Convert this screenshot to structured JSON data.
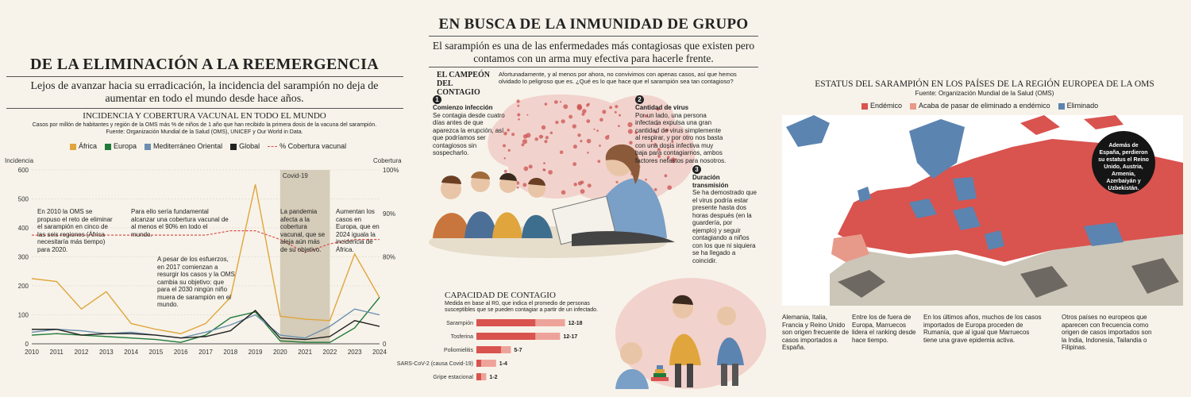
{
  "left": {
    "title": "DE LA ELIMINACIÓN A LA REEMERGENCIA",
    "subtitle": "Lejos de avanzar hacia su erradicación, la incidencia del sarampión no deja de aumentar en todo el mundo desde hace años.",
    "chart_title": "INCIDENCIA Y COBERTURA VACUNAL EN TODO EL MUNDO",
    "chart_desc": "Casos por millón de habitantes y región de la OMS más % de niños de 1 año que han recibido la primera dosis de la vacuna del sarampión.",
    "source": "Fuente: Organización Mundial de la Salud (OMS), UNICEF y Our World in Data.",
    "y_left_label": "Incidencia",
    "y_right_label": "Cobertura",
    "covid_label": "Covid-19",
    "annotations": [
      "En 2010 la OMS se propuso el reto de eliminar el sarampión en cinco de las seis regiones (África necesitaría más tiempo) para 2020.",
      "Para ello sería fundamental alcanzar una cobertura vacunal de al menos el 90% en todo el mundo.",
      "La pandemia afecta a la cobertura vacunal, que se aleja aún más de su objetivo.",
      "Aumentan los casos en Europa, que en 2024 iguala la incidencia de África.",
      "A pesar de los esfuerzos, en 2017 comienzan a resurgir los casos y la OMS cambia su objetivo: que para el 2030 ningún niño muera de sarampión en el mundo."
    ]
  },
  "chart_data": {
    "type": "line",
    "x": [
      "2010",
      "2011",
      "2012",
      "2013",
      "2014",
      "2015",
      "2016",
      "2017",
      "2018",
      "2019",
      "2020",
      "2021",
      "2022",
      "2023",
      "2024"
    ],
    "ylim": [
      0,
      600
    ],
    "yticks": [
      0,
      100,
      200,
      300,
      400,
      500,
      600
    ],
    "y2lim": [
      0,
      100
    ],
    "y2ticks": [
      "0",
      "80%",
      "90%",
      "100%"
    ],
    "series": [
      {
        "name": "África",
        "color": "#e0a53c",
        "values": [
          225,
          215,
          120,
          180,
          70,
          50,
          35,
          70,
          160,
          550,
          95,
          85,
          80,
          310,
          160
        ]
      },
      {
        "name": "Europa",
        "color": "#1f7a3a",
        "values": [
          30,
          35,
          30,
          25,
          20,
          15,
          5,
          30,
          90,
          110,
          10,
          5,
          5,
          55,
          160
        ]
      },
      {
        "name": "Mediterráneo Oriental",
        "color": "#6b8fb0",
        "values": [
          40,
          50,
          45,
          35,
          40,
          30,
          20,
          40,
          65,
          100,
          30,
          20,
          60,
          120,
          100
        ]
      },
      {
        "name": "Global",
        "color": "#222222",
        "values": [
          50,
          50,
          30,
          35,
          35,
          30,
          20,
          25,
          45,
          115,
          20,
          15,
          25,
          80,
          60
        ]
      },
      {
        "name": "% Cobertura vacunal",
        "color": "#d9534f",
        "dashed": true,
        "values": [
          85,
          85,
          85,
          85,
          85,
          85,
          85,
          85,
          86,
          86,
          84,
          81,
          83,
          84,
          84
        ]
      }
    ],
    "covid_band": [
      "2020",
      "2022"
    ]
  },
  "middle": {
    "title": "EN BUSCA DE LA INMUNIDAD DE GRUPO",
    "subtitle": "El sarampión es una de las enfermedades más contagiosas que existen pero contamos con un arma muy efectiva para hacerle frente.",
    "section_title": "EL CAMPEÓN DEL CONTAGIO",
    "section_text": "Afortunadamente, y al menos por ahora, no convivimos con apenas casos, así que hemos olvidado lo peligroso que es. ¿Qué es lo que hace que el sarampión sea tan contagioso?",
    "steps": [
      {
        "num": "1",
        "title": "Comienzo infección",
        "text": "Se contagia desde cuatro días antes de que aparezca la erupción, así que podríamos ser contagiosos sin sospecharlo."
      },
      {
        "num": "2",
        "title": "Cantidad de virus",
        "text": "Por un lado, una persona infectada expulsa una gran cantidad de virus simplemente al respirar, y por otro nos basta con una dosis infectiva muy baja para contagiarnos, ambos factores nefastos para nosotros."
      },
      {
        "num": "3",
        "title": "Duración transmisión",
        "text": "Se ha demostrado que el virus podría estar presente hasta dos horas después (en la guardería, por ejemplo) y seguir contagiando a niños con los que ni siquiera se ha llegado a coincidir."
      }
    ],
    "contagion": {
      "title": "CAPACIDAD DE CONTAGIO",
      "desc": "Medida en base al R0, que indica el promedio de personas susceptibles que se pueden contagiar a partir de un infectado.",
      "rows": [
        {
          "label": "Sarampión",
          "range": "12-18",
          "min": 12,
          "max": 18
        },
        {
          "label": "Tosferina",
          "range": "12-17",
          "min": 12,
          "max": 17
        },
        {
          "label": "Poliomielitis",
          "range": "5-7",
          "min": 5,
          "max": 7
        },
        {
          "label": "SARS-CoV-2 (causa Covid-19)",
          "range": "1-4",
          "min": 1,
          "max": 4
        },
        {
          "label": "Gripe estacional",
          "range": "1-2",
          "min": 1,
          "max": 2
        }
      ]
    }
  },
  "right": {
    "title": "ESTATUS DEL SARAMPIÓN EN LOS PAÍSES DE LA REGIÓN EUROPEA DE LA OMS",
    "source": "Fuente: Organización Mundial de la Salud (OMS)",
    "legend": [
      {
        "label": "Endémico",
        "color": "#d9534f"
      },
      {
        "label": "Acaba de pasar de eliminado a endémico",
        "color": "#e89a8a"
      },
      {
        "label": "Eliminado",
        "color": "#5b84b1"
      }
    ],
    "callout": "Además de España, perdieron su estatus el Reino Unido, Austria, Armenia, Azerbaiyán y Uzbekistán.",
    "notes": [
      "Alemania, Italia, Francia y Reino Unido son origen frecuente de casos importados a España.",
      "Entre los de fuera de Europa, Marruecos lidera el ranking desde hace tiempo.",
      "En los últimos años, muchos de los casos importados de Europa proceden de Rumanía, que al igual que Marruecos tiene una grave epidemia activa.",
      "Otros países no europeos que aparecen con frecuencia como origen de casos importados son la India, Indonesia, Tailandia o Filipinas."
    ],
    "colors": {
      "endemic": "#d9534f",
      "recent": "#e89a8a",
      "eliminated": "#5b84b1",
      "outside": "#ccc6b8",
      "dark": "#6d6862"
    }
  }
}
